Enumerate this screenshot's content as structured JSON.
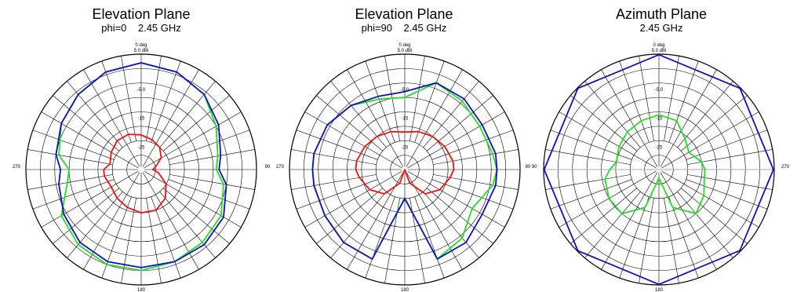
{
  "charts": [
    {
      "title": "Elevation Plane",
      "subtitle": "phi=0    2.45 GHz",
      "top_label": "0 deg",
      "unit_label": "5.0  dBi",
      "left_label": "270",
      "right_label": "90",
      "bottom_label": "180",
      "ring_labels": [
        "-5.0",
        "-15",
        "-25"
      ]
    },
    {
      "title": "Elevation Plane",
      "subtitle": "phi=90    2.45 GHz",
      "top_label": "0 deg",
      "unit_label": "5.0  dBi",
      "left_label": "270",
      "right_label": "90  90",
      "bottom_label": "180",
      "ring_labels": [
        "-5.0",
        "-15",
        "-25"
      ]
    },
    {
      "title": "Azimuth Plane",
      "subtitle": "2.45 GHz",
      "top_label": "0 deg",
      "unit_label": "5.0  dBi",
      "left_label": "",
      "right_label": "270",
      "bottom_label": "180",
      "ring_labels": [
        "-5.0",
        "-15",
        "-25"
      ]
    }
  ],
  "colors": {
    "red": "#ee1111",
    "green": "#22dd22",
    "blue": "#1111bb",
    "grid": "#000000",
    "ref": "#aaaaaa"
  },
  "chart_data": [
    {
      "type": "polar",
      "title": "Elevation Plane",
      "subtitle": "phi=0 2.45 GHz",
      "r_range_dBi": [
        -35,
        5
      ],
      "rings_dBi": [
        5,
        0,
        -5,
        -10,
        -15,
        -20,
        -25,
        -30
      ],
      "series": [
        {
          "color": "red",
          "angles_deg": [
            0,
            20,
            40,
            60,
            80,
            90,
            100,
            120,
            140,
            160,
            180,
            200,
            220,
            240,
            260,
            270,
            280,
            300,
            320,
            340,
            360
          ],
          "values_dBi": [
            -23,
            -24,
            -25,
            -27,
            -30,
            -31,
            -29,
            -25,
            -22,
            -20,
            -20,
            -21,
            -22,
            -23,
            -22,
            -22,
            -24,
            -23,
            -22,
            -22,
            -23
          ]
        },
        {
          "color": "green",
          "angles_deg": [
            0,
            20,
            40,
            60,
            80,
            90,
            100,
            120,
            140,
            160,
            180,
            200,
            220,
            240,
            260,
            270,
            280,
            300,
            320,
            340,
            360
          ],
          "values_dBi": [
            2,
            1,
            -1,
            -5,
            -8,
            -9,
            -6,
            -3,
            -2,
            -1,
            0,
            0,
            -1,
            -3,
            -9,
            -10,
            -6,
            -3,
            -1,
            1,
            2
          ]
        },
        {
          "color": "blue",
          "angles_deg": [
            0,
            20,
            40,
            60,
            80,
            90,
            100,
            120,
            140,
            160,
            180,
            200,
            220,
            240,
            260,
            270,
            280,
            300,
            320,
            340,
            360
          ],
          "values_dBi": [
            2,
            1,
            -1,
            -4,
            -7,
            -8,
            -5,
            -2,
            -1,
            -1,
            -1,
            -1,
            -2,
            -4,
            -6,
            -7,
            -5,
            -3,
            -1,
            1,
            2
          ]
        }
      ]
    },
    {
      "type": "polar",
      "title": "Elevation Plane",
      "subtitle": "phi=90 2.45 GHz",
      "r_range_dBi": [
        -35,
        5
      ],
      "rings_dBi": [
        5,
        0,
        -5,
        -10,
        -15,
        -20,
        -25,
        -30
      ],
      "series": [
        {
          "color": "red",
          "angles_deg": [
            0,
            20,
            40,
            60,
            80,
            90,
            100,
            120,
            140,
            160,
            180,
            200,
            220,
            240,
            260,
            270,
            280,
            300,
            320,
            340,
            360
          ],
          "values_dBi": [
            -22,
            -21,
            -20,
            -19,
            -18,
            -18,
            -19,
            -21,
            -24,
            -30,
            -35,
            -30,
            -24,
            -21,
            -19,
            -18,
            -18,
            -19,
            -20,
            -21,
            -22
          ]
        },
        {
          "color": "green",
          "angles_deg": [
            0,
            20,
            40,
            60,
            80,
            90,
            100,
            120,
            140,
            160,
            180,
            200,
            220,
            240,
            260,
            270,
            280,
            300,
            320,
            340,
            360
          ],
          "values_dBi": [
            -10,
            -3,
            -4,
            -5,
            -4,
            -3,
            -4,
            -8,
            -4,
            -2,
            -25,
            -2,
            -2,
            -3,
            -3,
            -3,
            -3,
            -4,
            -6,
            -9,
            -10
          ]
        },
        {
          "color": "blue",
          "angles_deg": [
            0,
            20,
            40,
            60,
            80,
            90,
            100,
            120,
            140,
            160,
            180,
            200,
            220,
            240,
            260,
            270,
            280,
            300,
            320,
            340,
            360
          ],
          "values_dBi": [
            -8,
            -3,
            -3,
            -4,
            -3,
            -3,
            -3,
            -4,
            -2,
            -2,
            -25,
            -2,
            -2,
            -3,
            -3,
            -3,
            -3,
            -4,
            -6,
            -8,
            -8
          ]
        }
      ]
    },
    {
      "type": "polar",
      "title": "Azimuth Plane",
      "subtitle": "2.45 GHz",
      "r_range_dBi": [
        -35,
        5
      ],
      "rings_dBi": [
        5,
        0,
        -5,
        -10,
        -15,
        -20,
        -25,
        -30
      ],
      "series": [
        {
          "color": "green",
          "angles_deg": [
            0,
            20,
            40,
            60,
            80,
            90,
            100,
            120,
            140,
            160,
            180,
            200,
            220,
            240,
            260,
            270,
            280,
            300,
            320,
            340,
            360
          ],
          "values_dBi": [
            -16,
            -17,
            -21,
            -23,
            -20,
            -19,
            -19,
            -17,
            -15,
            -21,
            -32,
            -21,
            -15,
            -15,
            -16,
            -18,
            -20,
            -19,
            -18,
            -17,
            -16
          ]
        },
        {
          "color": "blue",
          "angles_deg": [
            0,
            45,
            90,
            135,
            180,
            225,
            270,
            315,
            360
          ],
          "values_dBi": [
            4.8,
            4.8,
            4.7,
            4.7,
            4.8,
            4.8,
            4.8,
            4.8,
            4.8
          ]
        }
      ]
    }
  ]
}
